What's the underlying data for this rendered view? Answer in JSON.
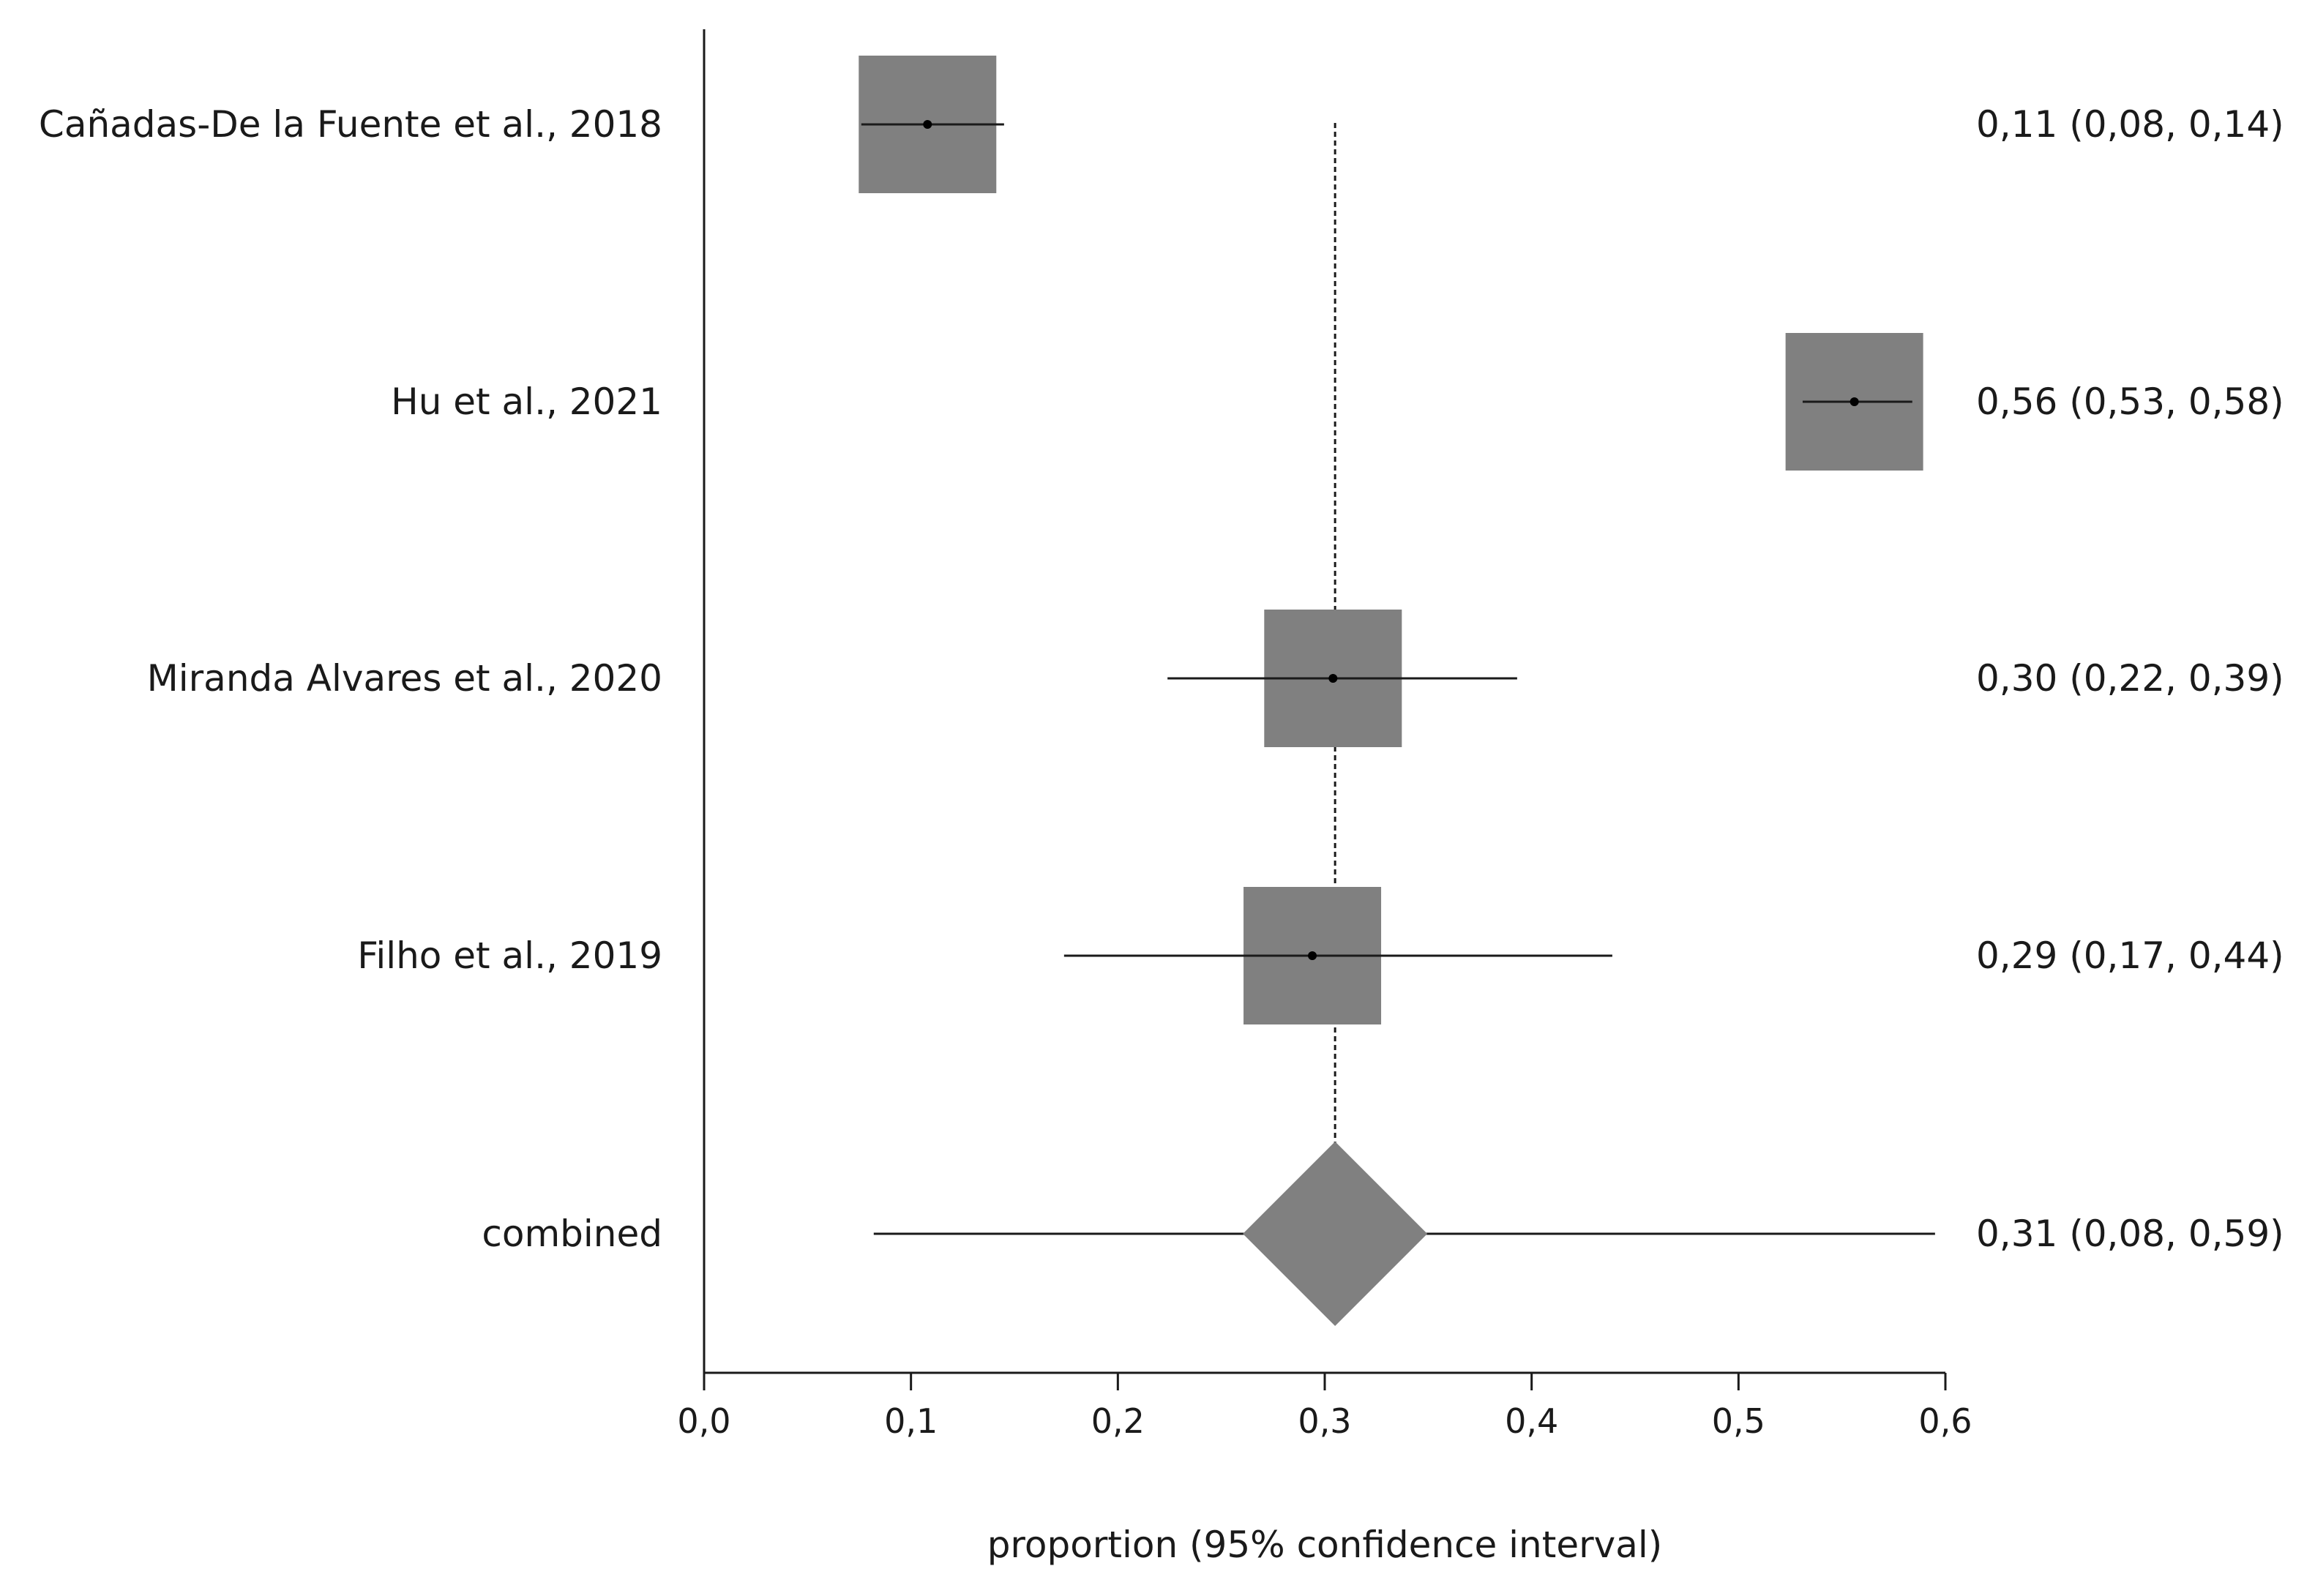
{
  "chart_data": {
    "type": "forest",
    "xlabel": "proportion (95% confidence interval)",
    "xlim": [
      0.0,
      0.6
    ],
    "x_ticks": [
      0.0,
      0.1,
      0.2,
      0.3,
      0.4,
      0.5,
      0.6
    ],
    "x_tick_labels": [
      "0,0",
      "0,1",
      "0,2",
      "0,3",
      "0,4",
      "0,5",
      "0,6"
    ],
    "reference_line": 0.305,
    "marker_color": "#808080",
    "line_color": "#1a1a1a",
    "studies": [
      {
        "label": "Cañadas-De la Fuente et al., 2018",
        "estimate": 0.108,
        "lower": 0.076,
        "upper": 0.145,
        "effect_text": "0,11 (0,08, 0,14)"
      },
      {
        "label": "Hu et al., 2021",
        "estimate": 0.556,
        "lower": 0.531,
        "upper": 0.584,
        "effect_text": "0,56 (0,53, 0,58)"
      },
      {
        "label": "Miranda Alvares et al., 2020",
        "estimate": 0.304,
        "lower": 0.224,
        "upper": 0.393,
        "effect_text": "0,30 (0,22, 0,39)"
      },
      {
        "label": "Filho et al., 2019",
        "estimate": 0.294,
        "lower": 0.174,
        "upper": 0.439,
        "effect_text": "0,29 (0,17, 0,44)"
      }
    ],
    "combined": {
      "label": "combined",
      "estimate": 0.305,
      "lower": 0.082,
      "upper": 0.595,
      "effect_text": "0,31 (0,08, 0,59)"
    }
  }
}
